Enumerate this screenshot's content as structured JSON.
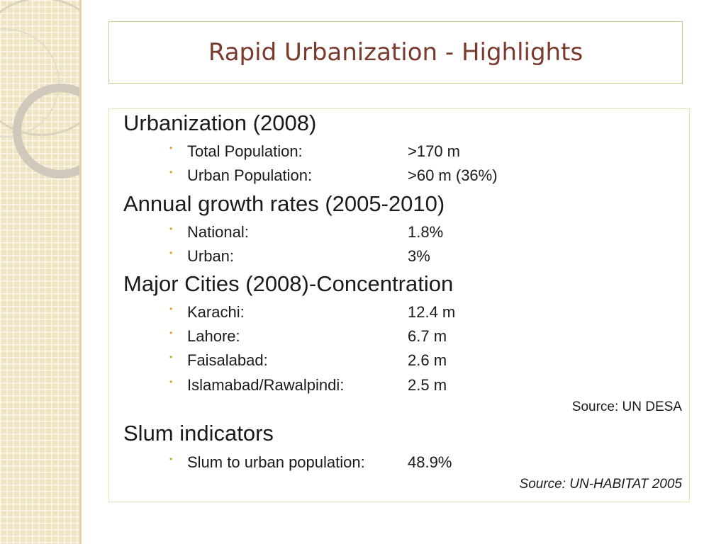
{
  "title": "Rapid Urbanization - Highlights",
  "sections": [
    {
      "heading": "Urbanization (2008)",
      "items": [
        {
          "label": "Total Population:",
          "value": ">170 m"
        },
        {
          "label": "Urban Population:",
          "value": ">60 m (36%)"
        }
      ]
    },
    {
      "heading": "Annual growth rates (2005-2010)",
      "items": [
        {
          "label": "National:",
          "value": "1.8%"
        },
        {
          "label": "Urban:",
          "value": "3%"
        }
      ]
    },
    {
      "heading": "Major Cities (2008)-Concentration",
      "items": [
        {
          "label": "Karachi:",
          "value": "12.4 m"
        },
        {
          "label": "Lahore:",
          "value": "6.7 m"
        },
        {
          "label": "Faisalabad:",
          "value": "2.6 m"
        },
        {
          "label": "Islamabad/Rawalpindi:",
          "value": "2.5 m"
        }
      ],
      "source": "Source: UN DESA"
    },
    {
      "heading": "Slum indicators",
      "items": [
        {
          "label": "Slum to urban population:",
          "value": "48.9%"
        }
      ],
      "source": "Source: UN-HABITAT 2005"
    }
  ],
  "bullet_glyph": "•",
  "colors": {
    "title": "#7b3a2e",
    "bullet": "#d6a528",
    "frame_border": "#d7c48a",
    "side_strip": "#efe4c2"
  },
  "icons": [
    "bullet-dot-icon"
  ]
}
